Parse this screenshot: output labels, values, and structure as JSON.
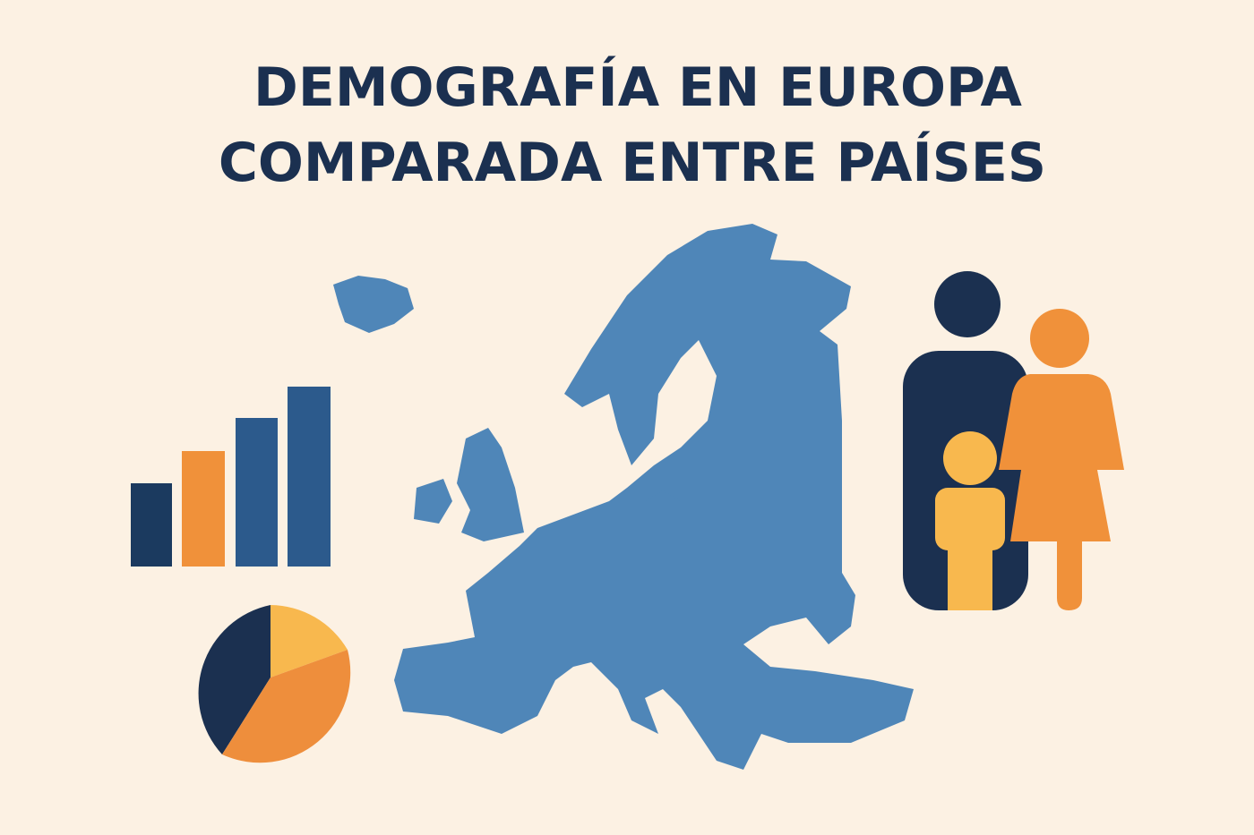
{
  "header": {
    "title_lines": [
      "DEMOGRAFÍA EN EUROPA",
      "COMPARADA ENTRE PAÍSES"
    ]
  }
}
